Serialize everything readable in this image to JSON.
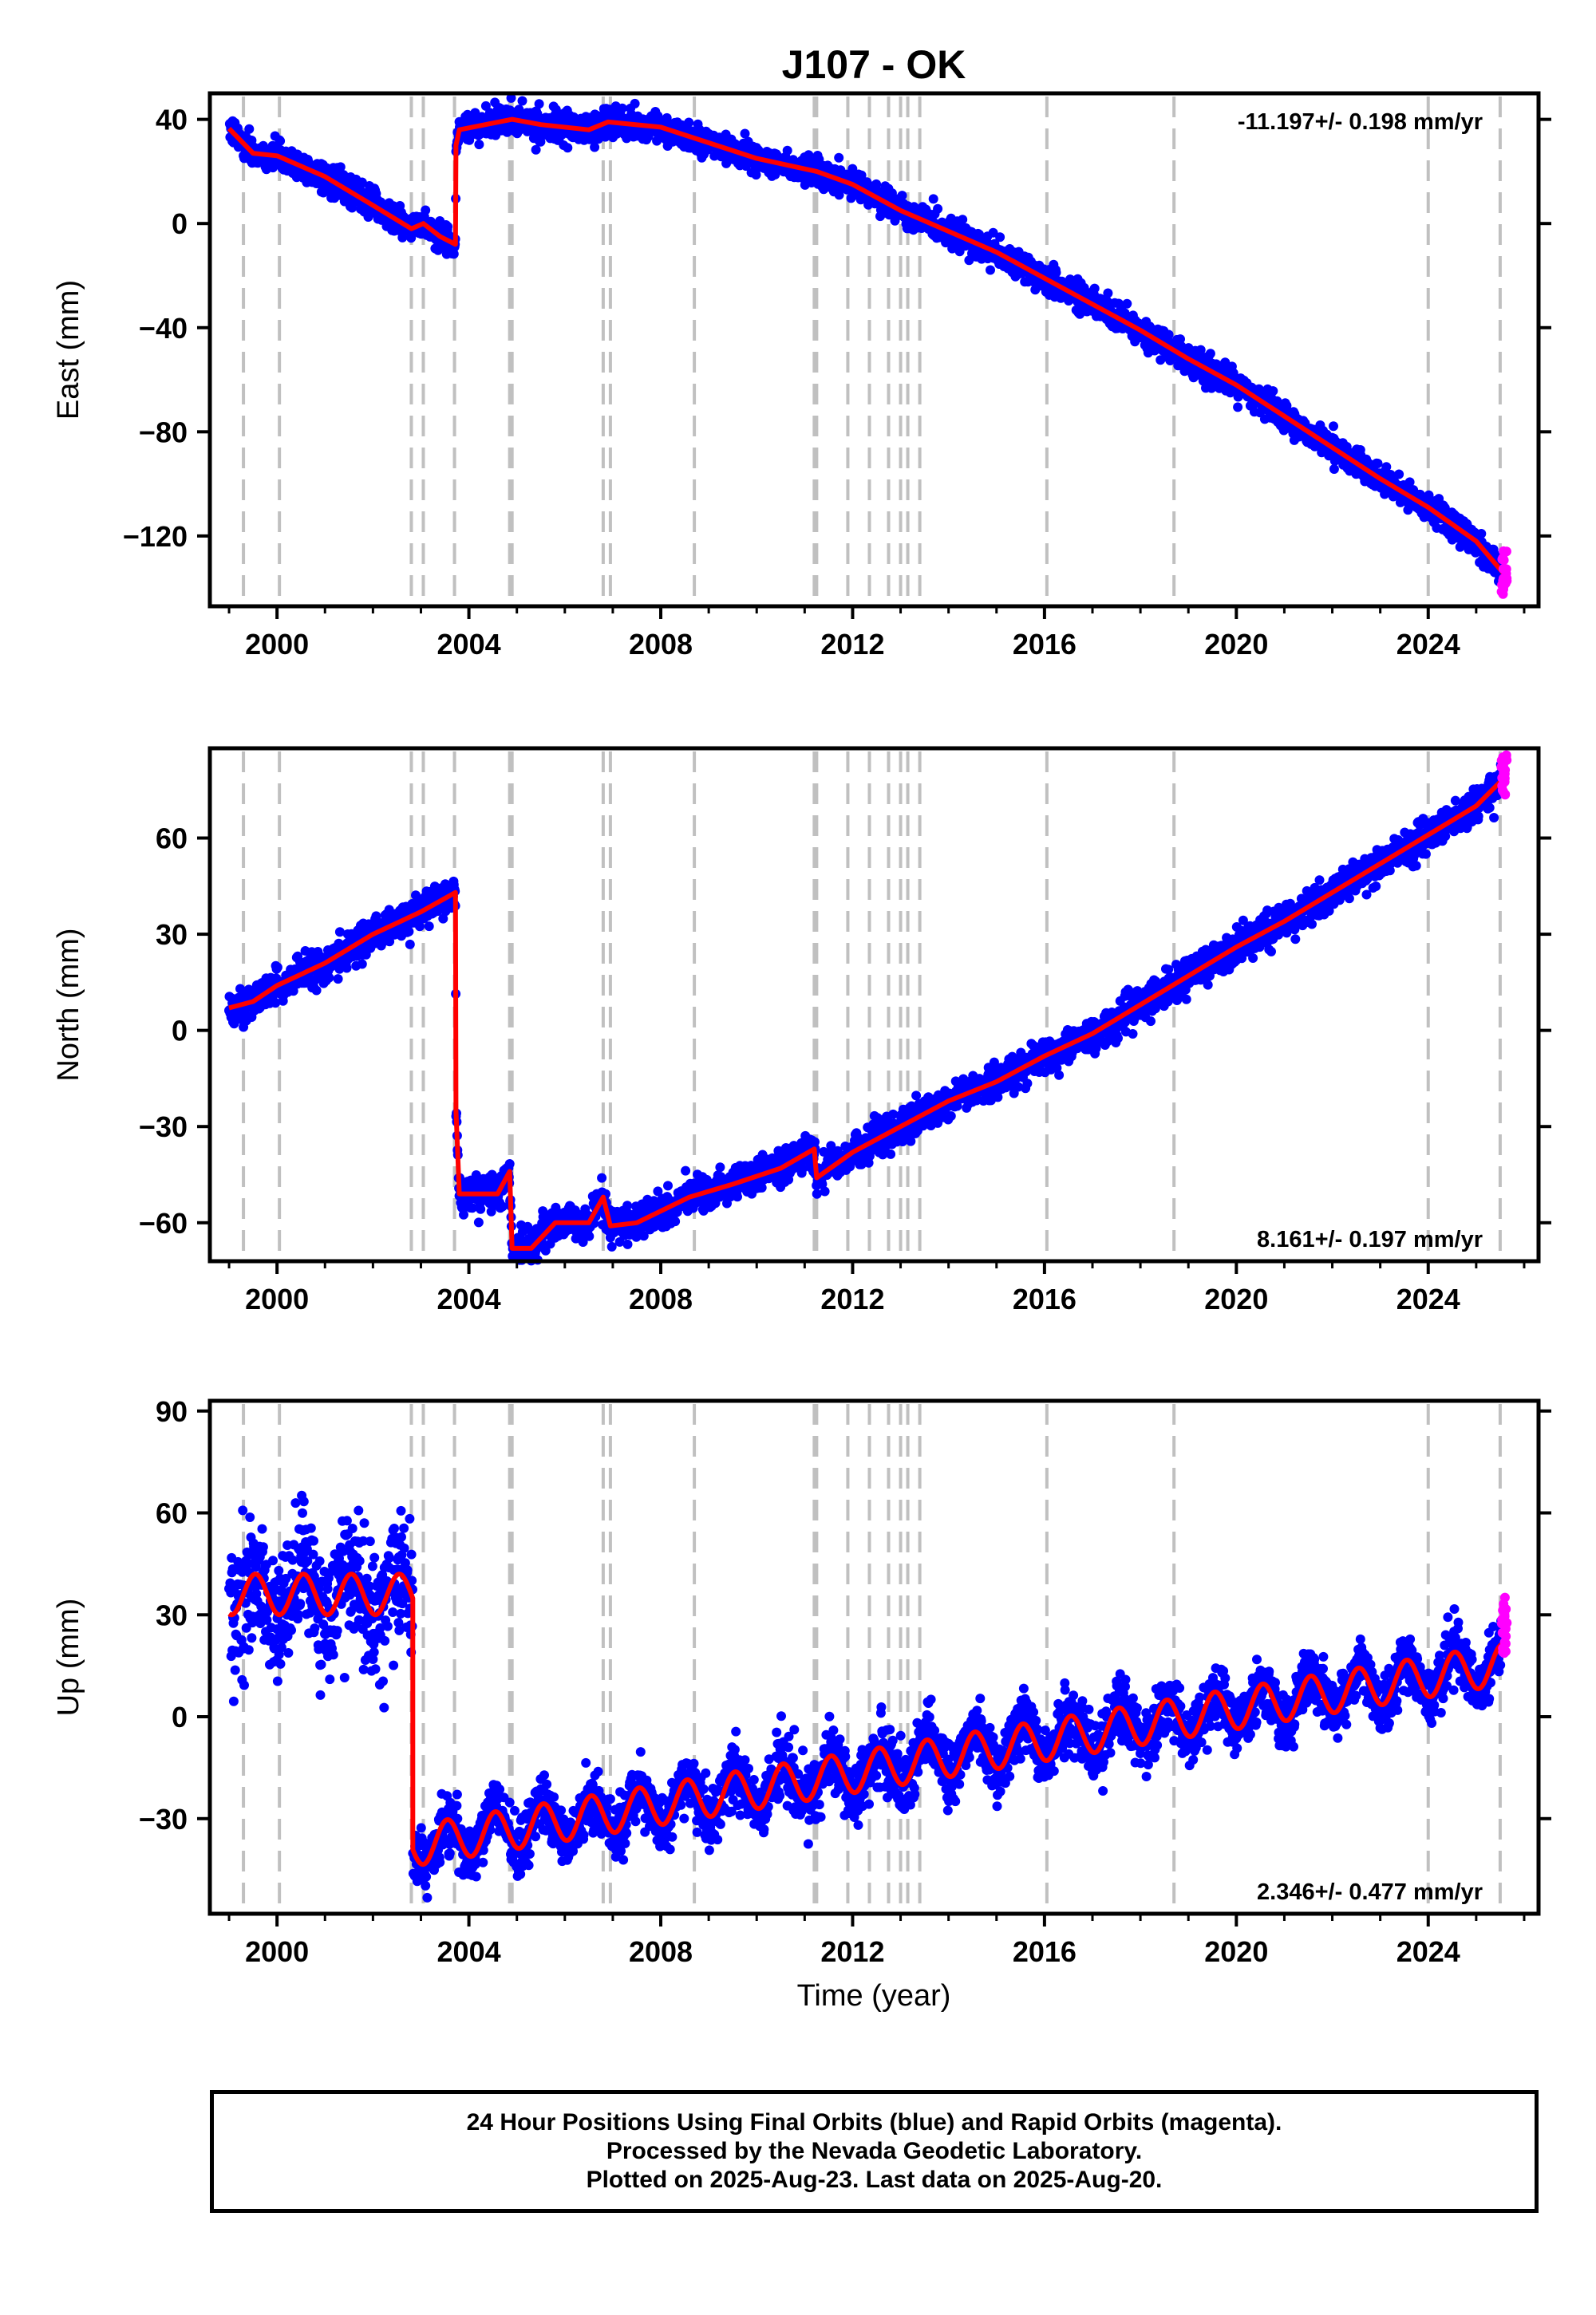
{
  "title": "J107 - OK",
  "xlabel": "Time (year)",
  "colors": {
    "final": "#0000ff",
    "rapid": "#ff00ff",
    "model": "#ff0000",
    "offsets": "#c0c0c0"
  },
  "caption": [
    "24 Hour Positions Using Final Orbits (blue) and Rapid Orbits (magenta).",
    "Processed by the Nevada Geodetic Laboratory.",
    "Plotted on 2025-Aug-23. Last data on 2025-Aug-20."
  ],
  "chart_data": [
    {
      "type": "scatter",
      "ylabel": "East (mm)",
      "rate": "-11.197+/- 0.198 mm/yr",
      "rate_position": "top-right",
      "xlim": [
        1998.6,
        2026.3
      ],
      "ylim": [
        -147,
        50
      ],
      "xticks": [
        2000,
        2004,
        2008,
        2012,
        2016,
        2020,
        2024
      ],
      "yticks": [
        40,
        0,
        -40,
        -80,
        -120
      ],
      "ytick_labels": [
        "40",
        "0",
        "−40",
        "−80",
        "−120"
      ],
      "offsets": [
        1999.3,
        2000.05,
        2002.8,
        2003.05,
        2003.7,
        2004.85,
        2004.9,
        2006.8,
        2006.95,
        2008.7,
        2011.2,
        2011.25,
        2011.9,
        2012.35,
        2012.75,
        2013.0,
        2013.15,
        2013.4,
        2016.05,
        2018.7,
        2024.0,
        2025.5
      ],
      "model": [
        [
          1999.0,
          36.5
        ],
        [
          1999.5,
          27.0
        ],
        [
          2000.0,
          26.0
        ],
        [
          2001.0,
          18.0
        ],
        [
          2002.0,
          7.0
        ],
        [
          2002.8,
          -2.0
        ],
        [
          2003.05,
          0.0
        ],
        [
          2003.4,
          -5.0
        ],
        [
          2003.72,
          -8.0
        ],
        [
          2003.73,
          30.0
        ],
        [
          2003.8,
          36.0
        ],
        [
          2004.9,
          40.0
        ],
        [
          2005.5,
          38.0
        ],
        [
          2006.5,
          36.0
        ],
        [
          2006.9,
          39.0
        ],
        [
          2008.0,
          37.0
        ],
        [
          2009.0,
          31.0
        ],
        [
          2010.0,
          25.0
        ],
        [
          2011.0,
          21.0
        ],
        [
          2011.25,
          20.0
        ],
        [
          2012.0,
          15.0
        ],
        [
          2013.0,
          5.0
        ],
        [
          2014.0,
          -3.0
        ],
        [
          2015.0,
          -11.0
        ],
        [
          2016.0,
          -21.0
        ],
        [
          2017.0,
          -31.0
        ],
        [
          2018.0,
          -41.0
        ],
        [
          2019.0,
          -52.0
        ],
        [
          2020.0,
          -62.0
        ],
        [
          2021.0,
          -74.0
        ],
        [
          2022.0,
          -86.0
        ],
        [
          2023.0,
          -98.0
        ],
        [
          2024.0,
          -109.0
        ],
        [
          2025.0,
          -122.0
        ],
        [
          2025.6,
          -135.0
        ]
      ],
      "scatter_sd": 2.6,
      "rapid": {
        "x": [
          2025.52,
          2025.64
        ],
        "y": [
          -143,
          -124
        ]
      }
    },
    {
      "type": "scatter",
      "ylabel": "North (mm)",
      "rate": "8.161+/- 0.197 mm/yr",
      "rate_position": "bottom-right",
      "xlim": [
        1998.6,
        2026.3
      ],
      "ylim": [
        -72,
        88
      ],
      "xticks": [
        2000,
        2004,
        2008,
        2012,
        2016,
        2020,
        2024
      ],
      "yticks": [
        60,
        30,
        0,
        -30,
        -60
      ],
      "ytick_labels": [
        "60",
        "30",
        "0",
        "−30",
        "−60"
      ],
      "offsets": [
        1999.3,
        2000.05,
        2002.8,
        2003.05,
        2003.7,
        2004.85,
        2004.9,
        2006.8,
        2006.95,
        2008.7,
        2011.2,
        2011.25,
        2011.9,
        2012.35,
        2012.75,
        2013.0,
        2013.15,
        2013.4,
        2016.05,
        2018.7,
        2024.0,
        2025.5
      ],
      "model": [
        [
          1999.0,
          7.0
        ],
        [
          1999.5,
          9.0
        ],
        [
          2000.0,
          14.0
        ],
        [
          2001.0,
          21.0
        ],
        [
          2002.0,
          30.0
        ],
        [
          2003.0,
          37.0
        ],
        [
          2003.72,
          43.0
        ],
        [
          2003.73,
          -25.0
        ],
        [
          2003.8,
          -51.0
        ],
        [
          2004.6,
          -51.0
        ],
        [
          2004.85,
          -44.0
        ],
        [
          2004.9,
          -68.0
        ],
        [
          2005.3,
          -68.0
        ],
        [
          2005.8,
          -60.0
        ],
        [
          2006.5,
          -60.0
        ],
        [
          2006.8,
          -52.0
        ],
        [
          2006.95,
          -61.0
        ],
        [
          2007.5,
          -60.0
        ],
        [
          2008.6,
          -52.0
        ],
        [
          2009.5,
          -48.0
        ],
        [
          2010.5,
          -43.0
        ],
        [
          2011.2,
          -37.0
        ],
        [
          2011.25,
          -46.0
        ],
        [
          2012.0,
          -38.0
        ],
        [
          2013.0,
          -30.0
        ],
        [
          2014.0,
          -22.0
        ],
        [
          2015.0,
          -16.0
        ],
        [
          2016.0,
          -8.0
        ],
        [
          2017.0,
          -1.0
        ],
        [
          2018.0,
          8.0
        ],
        [
          2019.0,
          17.0
        ],
        [
          2020.0,
          26.0
        ],
        [
          2021.0,
          34.0
        ],
        [
          2022.0,
          43.0
        ],
        [
          2023.0,
          52.0
        ],
        [
          2024.0,
          61.0
        ],
        [
          2025.0,
          70.0
        ],
        [
          2025.6,
          79.0
        ]
      ],
      "scatter_sd": 2.6,
      "rapid": {
        "x": [
          2025.52,
          2025.64
        ],
        "y": [
          73,
          86
        ]
      }
    },
    {
      "type": "scatter",
      "ylabel": "Up (mm)",
      "rate": "2.346+/- 0.477 mm/yr",
      "rate_position": "bottom-right",
      "xlim": [
        1998.6,
        2026.3
      ],
      "ylim": [
        -58,
        93
      ],
      "xticks": [
        2000,
        2004,
        2008,
        2012,
        2016,
        2020,
        2024
      ],
      "xtick_labels": [
        "2000",
        "2004",
        "2008",
        "2012",
        "2016",
        "2020",
        "2024"
      ],
      "yticks": [
        90,
        60,
        30,
        0,
        -30
      ],
      "ytick_labels": [
        "90",
        "60",
        "30",
        "0",
        "−30"
      ],
      "offsets": [
        1999.3,
        2000.05,
        2002.8,
        2003.05,
        2003.7,
        2004.85,
        2004.9,
        2006.8,
        2006.95,
        2008.7,
        2011.2,
        2011.25,
        2011.9,
        2012.35,
        2012.75,
        2013.0,
        2013.15,
        2013.4,
        2016.05,
        2018.7,
        2024.0,
        2025.5
      ],
      "seasonal": {
        "start": 1999.0,
        "end": 2025.6,
        "jump_at": 2002.83,
        "before": [
          36,
          0
        ],
        "after": [
          -38,
          2.35
        ],
        "amp": 6,
        "sd_before": 9,
        "sd_after": 4.5
      },
      "rapid": {
        "x": [
          2025.52,
          2025.64
        ],
        "y": [
          18,
          36
        ]
      }
    }
  ]
}
